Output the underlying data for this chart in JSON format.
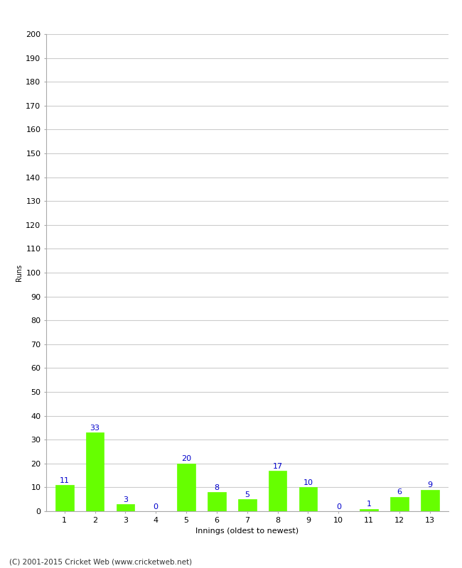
{
  "xlabel": "Innings (oldest to newest)",
  "ylabel": "Runs",
  "categories": [
    1,
    2,
    3,
    4,
    5,
    6,
    7,
    8,
    9,
    10,
    11,
    12,
    13
  ],
  "values": [
    11,
    33,
    3,
    0,
    20,
    8,
    5,
    17,
    10,
    0,
    1,
    6,
    9
  ],
  "bar_color": "#66ff00",
  "bar_edgecolor": "#66ff00",
  "label_color": "#0000cc",
  "ylim": [
    0,
    200
  ],
  "yticks": [
    0,
    10,
    20,
    30,
    40,
    50,
    60,
    70,
    80,
    90,
    100,
    110,
    120,
    130,
    140,
    150,
    160,
    170,
    180,
    190,
    200
  ],
  "background_color": "#ffffff",
  "grid_color": "#cccccc",
  "footer_text": "(C) 2001-2015 Cricket Web (www.cricketweb.net)",
  "label_fontsize": 8,
  "axis_fontsize": 8,
  "ylabel_fontsize": 7,
  "xlabel_fontsize": 8,
  "footer_fontsize": 7.5
}
